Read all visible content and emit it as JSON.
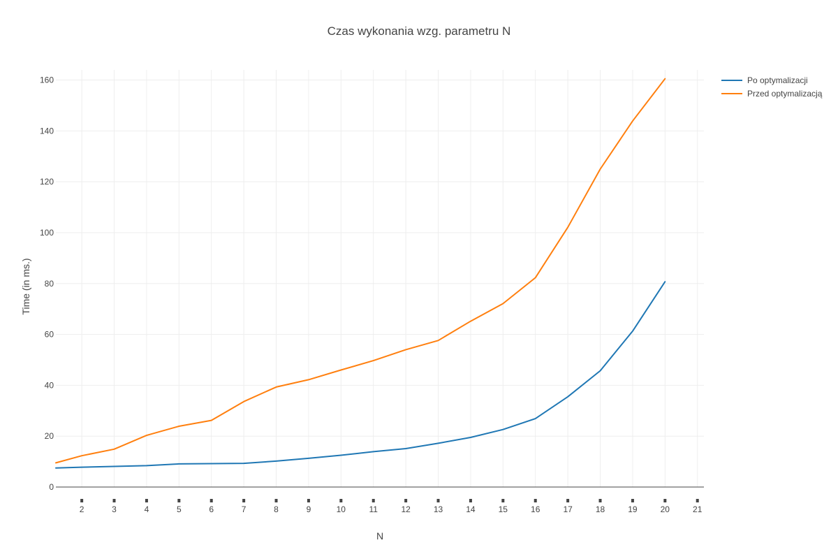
{
  "chart_data": {
    "type": "line",
    "title": "Czas wykonania wzg. parametru N",
    "xlabel": "N",
    "ylabel": "Time (in ms.)",
    "xlim": [
      1.2,
      21.2
    ],
    "ylim": [
      0,
      164
    ],
    "x_ticks": [
      2,
      3,
      4,
      5,
      6,
      7,
      8,
      9,
      10,
      11,
      12,
      13,
      14,
      15,
      16,
      17,
      18,
      19,
      20,
      21
    ],
    "y_ticks": [
      0,
      20,
      40,
      60,
      80,
      100,
      120,
      140,
      160
    ],
    "grid": true,
    "legend_position": "top-right",
    "x": [
      1.2,
      2,
      3,
      4,
      5,
      6,
      7,
      8,
      9,
      10,
      11,
      12,
      13,
      14,
      15,
      16,
      17,
      18,
      19,
      20
    ],
    "series": [
      {
        "name": "Po optymalizacji",
        "color": "#1f77b4",
        "values": [
          7.5,
          7.8,
          8.1,
          8.4,
          9.1,
          9.2,
          9.3,
          10.2,
          11.3,
          12.5,
          13.9,
          15.1,
          17.2,
          19.5,
          22.6,
          26.9,
          35.5,
          45.7,
          61.3,
          80.7
        ]
      },
      {
        "name": "Przed optymalizacją",
        "color": "#ff7f0e",
        "values": [
          9.5,
          12.3,
          14.9,
          20.3,
          23.9,
          26.2,
          33.6,
          39.3,
          42.2,
          46.0,
          49.7,
          54.0,
          57.6,
          65.2,
          72.1,
          82.3,
          102.1,
          125.0,
          143.9,
          160.5
        ]
      }
    ]
  }
}
